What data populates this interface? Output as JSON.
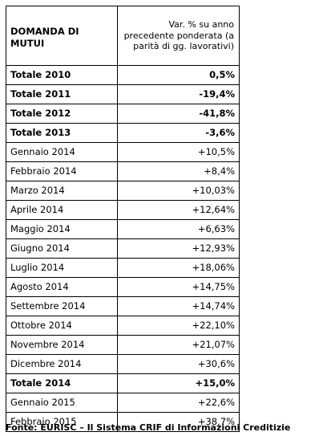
{
  "table": {
    "header": {
      "col1": "DOMANDA DI MUTUI",
      "col2": "Var. % su anno precedente ponderata (a parità di gg. lavorativi)"
    },
    "rows": [
      {
        "label": "Totale 2010",
        "value": "0,5%",
        "bold": true
      },
      {
        "label": "Totale 2011",
        "value": "-19,4%",
        "bold": true
      },
      {
        "label": "Totale 2012",
        "value": "-41,8%",
        "bold": true
      },
      {
        "label": "Totale 2013",
        "value": "-3,6%",
        "bold": true
      },
      {
        "label": "Gennaio 2014",
        "value": "+10,5%",
        "bold": false
      },
      {
        "label": "Febbraio 2014",
        "value": "+8,4%",
        "bold": false
      },
      {
        "label": "Marzo 2014",
        "value": "+10,03%",
        "bold": false
      },
      {
        "label": "Aprile 2014",
        "value": "+12,64%",
        "bold": false
      },
      {
        "label": "Maggio 2014",
        "value": "+6,63%",
        "bold": false
      },
      {
        "label": "Giugno 2014",
        "value": "+12,93%",
        "bold": false
      },
      {
        "label": "Luglio 2014",
        "value": "+18,06%",
        "bold": false
      },
      {
        "label": "Agosto 2014",
        "value": "+14,75%",
        "bold": false
      },
      {
        "label": "Settembre 2014",
        "value": "+14,74%",
        "bold": false
      },
      {
        "label": "Ottobre 2014",
        "value": "+22,10%",
        "bold": false
      },
      {
        "label": "Novembre 2014",
        "value": "+21,07%",
        "bold": false
      },
      {
        "label": "Dicembre 2014",
        "value": "+30,6%",
        "bold": false
      },
      {
        "label": "Totale 2014",
        "value": "+15,0%",
        "bold": true
      },
      {
        "label": "Gennaio 2015",
        "value": "+22,6%",
        "bold": false
      },
      {
        "label": "Febbraio 2015",
        "value": "+38,7%",
        "bold": false
      }
    ]
  },
  "source": "Fonte: EURISC – Il Sistema CRIF di Informazioni Creditizie"
}
